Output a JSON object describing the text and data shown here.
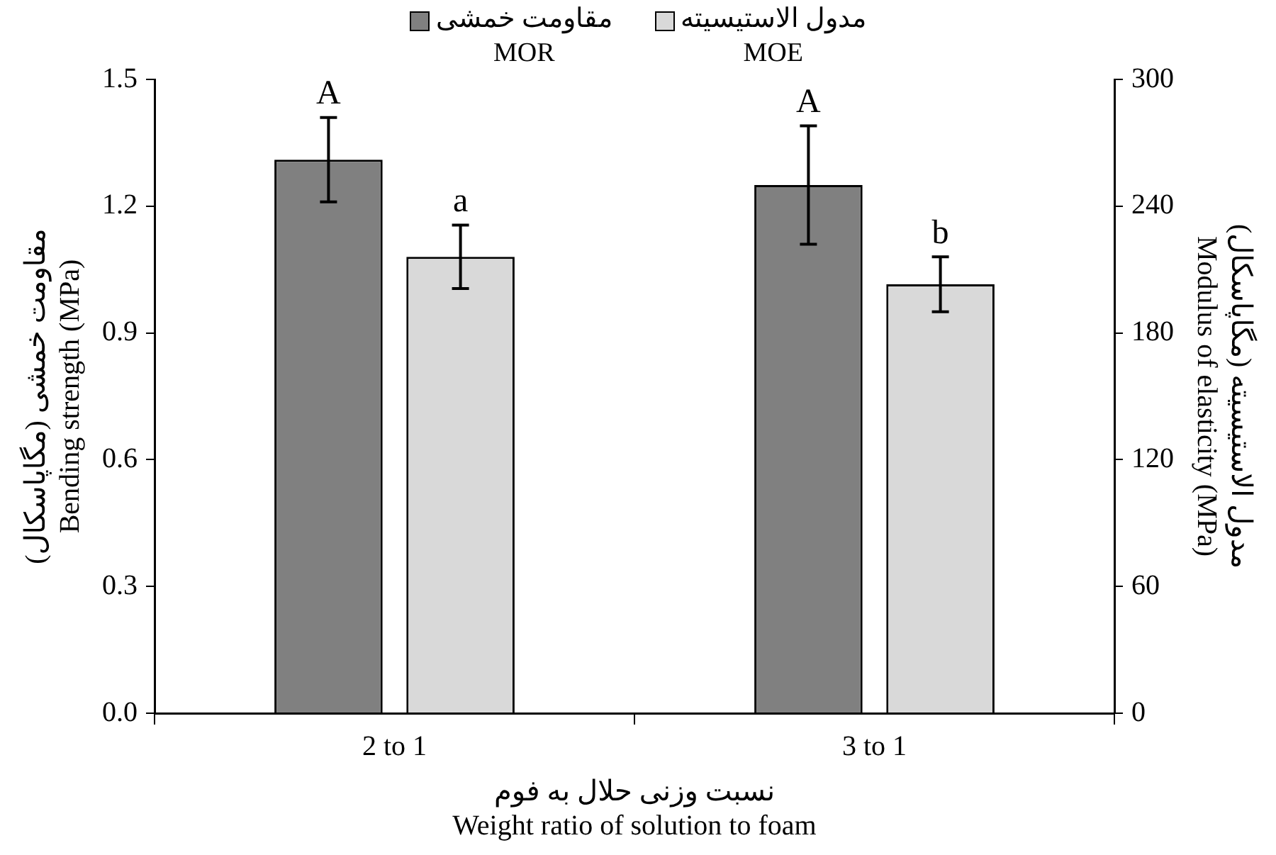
{
  "chart_data": {
    "type": "bar",
    "categories": [
      "2 to 1",
      "3 to 1"
    ],
    "series": [
      {
        "name": "مقاومت خمشی\nMOR",
        "color": "#808080",
        "values": [
          1.31,
          1.25
        ],
        "errors": [
          0.1,
          0.14
        ]
      },
      {
        "name": "مدول الاستیسیته\nMOE",
        "color": "#d9d9d9",
        "axis": "y2",
        "values": [
          216,
          203
        ],
        "errors": [
          15,
          13
        ]
      }
    ],
    "xlabel": "نسبت وزنی حلال به فوم\nWeight ratio of solution to foam",
    "ylabel": "مقاومت خمشی (مگاپاسکال)\nBending strength (MPa)",
    "y2label": "مدول الاستیسیته (مگاپاسکال)\nModulus of elasticity (MPa)",
    "annotations": [
      "A",
      "a",
      "A",
      "b"
    ],
    "ylim": [
      0,
      1.5
    ],
    "yticks": [
      {
        "value": 0,
        "label": "0.0"
      },
      {
        "value": 0.3,
        "label": "0.3"
      },
      {
        "value": 0.6,
        "label": "0.6"
      },
      {
        "value": 0.9,
        "label": "0.9"
      },
      {
        "value": 1.2,
        "label": "1.2"
      },
      {
        "value": 1.5,
        "label": "1.5"
      }
    ],
    "y2lim": [
      0,
      300
    ],
    "y2ticks": [
      0,
      60,
      120,
      180,
      240,
      300
    ],
    "grid": false,
    "legend": "top"
  }
}
